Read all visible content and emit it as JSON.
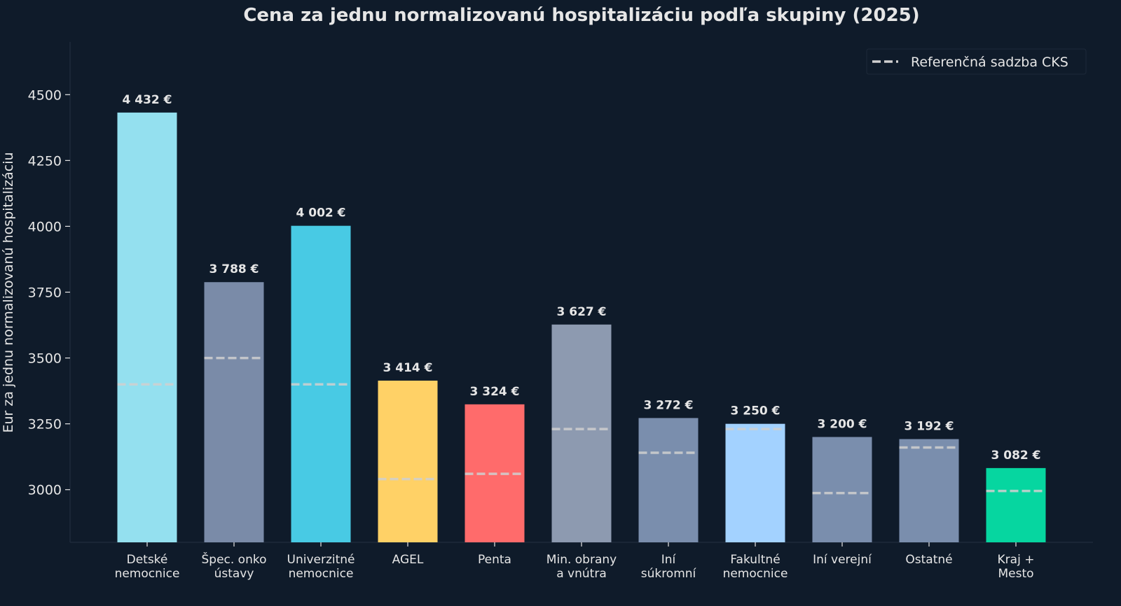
{
  "chart_data": {
    "type": "bar",
    "title": "Cena za jednu normalizovanú hospitalizáciu podľa skupiny (2025)",
    "xlabel": "",
    "ylabel": "Eur za jednu normalizovanú hospitalizáciu",
    "ylim": [
      2800,
      4700
    ],
    "yticks": [
      3000,
      3250,
      3500,
      3750,
      4000,
      4250,
      4500
    ],
    "grid": false,
    "legend_position": "top-right",
    "categories": [
      [
        "Detské",
        "nemocnice"
      ],
      [
        "Špec. onko",
        "ústavy"
      ],
      [
        "Univerzitné",
        "nemocnice"
      ],
      [
        "AGEL"
      ],
      [
        "Penta"
      ],
      [
        "Min. obrany",
        "a vnútra"
      ],
      [
        "Iní",
        "súkromní"
      ],
      [
        "Fakultné",
        "nemocnice"
      ],
      [
        "Iní verejní"
      ],
      [
        "Ostatné"
      ],
      [
        "Kraj +",
        "Mesto"
      ]
    ],
    "series": [
      {
        "values": [
          4432,
          3788,
          4002,
          3414,
          3324,
          3627,
          3272,
          3250,
          3200,
          3192,
          3082
        ],
        "labels": [
          "4 432 €",
          "3 788 €",
          "4 002 €",
          "3 414 €",
          "3 324 €",
          "3 627 €",
          "3 272 €",
          "3 250 €",
          "3 200 €",
          "3 192 €",
          "3 082 €"
        ],
        "colors": [
          "#94e0ef",
          "#7a8ba8",
          "#48cae4",
          "#ffd166",
          "#ff6b6b",
          "#8d9ab0",
          "#7a8ead",
          "#a3d2ff",
          "#7a8ead",
          "#7a8ead",
          "#06d6a0"
        ]
      },
      {
        "name": "Referenčná sadzba CKS",
        "style": "dashed",
        "color": "#d0d0d0",
        "values": [
          3400,
          3500,
          3400,
          3040,
          3060,
          3230,
          3140,
          3230,
          2987,
          3160,
          2995
        ]
      }
    ]
  },
  "colors": {
    "background": "#0f1b2a",
    "text": "#e6e6e6"
  }
}
